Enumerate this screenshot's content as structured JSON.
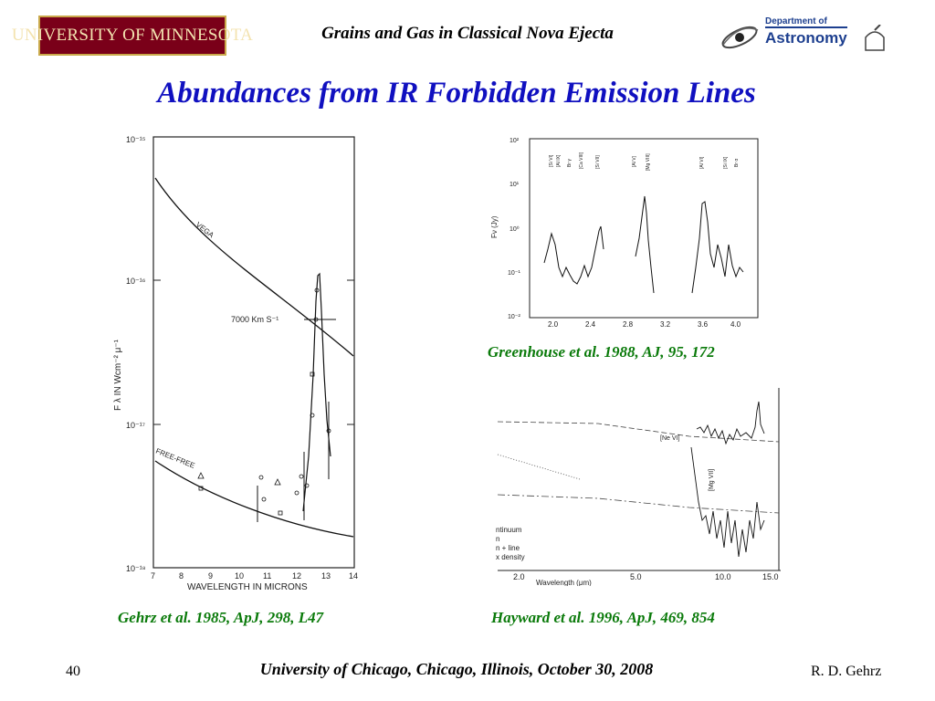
{
  "header": {
    "left_logo_text": "UNIVERSITY OF MINNESOTA",
    "title": "Grains and Gas in Classical Nova Ejecta",
    "right_logo_dept": "Department of",
    "right_logo_name": "Astronomy"
  },
  "slide_title": "Abundances from IR Forbidden Emission Lines",
  "figures": {
    "left": {
      "caption": "Gehrz et al. 1985, ApJ, 298, L47",
      "xlabel": "WAVELENGTH IN MICRONS",
      "ylabel": "F λ  IN  Wcm⁻² μ⁻¹",
      "x_ticks": [
        "7",
        "8",
        "9",
        "10",
        "11",
        "12",
        "13",
        "14"
      ],
      "y_ticks": [
        "10⁻¹⁵",
        "10⁻¹⁶",
        "10⁻¹⁷",
        "10⁻¹⁸"
      ],
      "label_vega": "VEGA",
      "label_freefree": "FREE-FREE",
      "label_velocity": "7000 Km S⁻¹"
    },
    "top_right": {
      "caption": "Greenhouse et al. 1988, AJ, 95, 172",
      "ylabel": "Fν (Jy)",
      "x_ticks": [
        "2.0",
        "2.4",
        "2.8",
        "3.2",
        "3.6",
        "4.0"
      ],
      "y_ticks": [
        "10²",
        "10¹",
        "10⁰",
        "10⁻¹",
        "10⁻²"
      ],
      "line_labels": [
        "[Si VI]",
        "[Al IX]",
        "Br γ",
        "[Ca VIII]",
        "[Si VII]",
        "[Al V]",
        "[Mg VIII]",
        "[Al VI]",
        "[Si IX]",
        "Br α"
      ]
    },
    "bottom_right": {
      "caption": "Hayward et al. 1996, ApJ, 469, 854",
      "xlabel": "Wavelength (μm)",
      "x_ticks": [
        "2.0",
        "5.0",
        "10.0",
        "15.0"
      ],
      "line_labels": [
        "[Ne VI]",
        "[Mg VII]"
      ],
      "legend": [
        "ntinuum",
        "n",
        "n + line",
        "x density"
      ]
    }
  },
  "footer": {
    "page_number": "40",
    "center": "University of Chicago, Chicago, Illinois, October 30, 2008",
    "author": "R. D. Gehrz"
  },
  "colors": {
    "title": "#1010c0",
    "caption": "#0a7a0a",
    "umn_maroon": "#7a0019",
    "astro_blue": "#1d3f8f"
  }
}
